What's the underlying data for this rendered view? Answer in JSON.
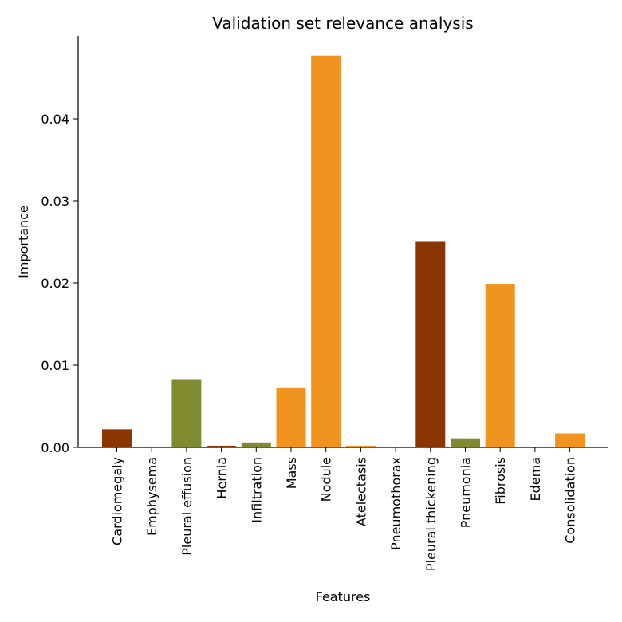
{
  "chart_data": {
    "type": "bar",
    "title": "Validation set relevance analysis",
    "xlabel": "Features",
    "ylabel": "Importance",
    "ylim": [
      0,
      0.05
    ],
    "yticks": [
      "0.00",
      "0.01",
      "0.02",
      "0.03",
      "0.04"
    ],
    "grid": false,
    "categories": [
      "Cardiomegaly",
      "Emphysema",
      "Pleural effusion",
      "Hernia",
      "Infiltration",
      "Mass",
      "Nodule",
      "Atelectasis",
      "Pneumothorax",
      "Pleural thickening",
      "Pneumonia",
      "Fibrosis",
      "Edema",
      "Consolidation"
    ],
    "values": [
      0.0022,
      0.0001,
      0.0083,
      0.0002,
      0.0006,
      0.0073,
      0.0477,
      0.0002,
      0.0,
      0.0251,
      0.0011,
      0.0199,
      0.0,
      0.0017
    ],
    "colors": [
      "#8B3503",
      "#8B3503",
      "#808B30",
      "#8B3503",
      "#808B30",
      "#F0931F",
      "#F0931F",
      "#F0931F",
      "#8B3503",
      "#8B3503",
      "#808B30",
      "#F0931F",
      "#F0931F",
      "#F0931F"
    ]
  }
}
